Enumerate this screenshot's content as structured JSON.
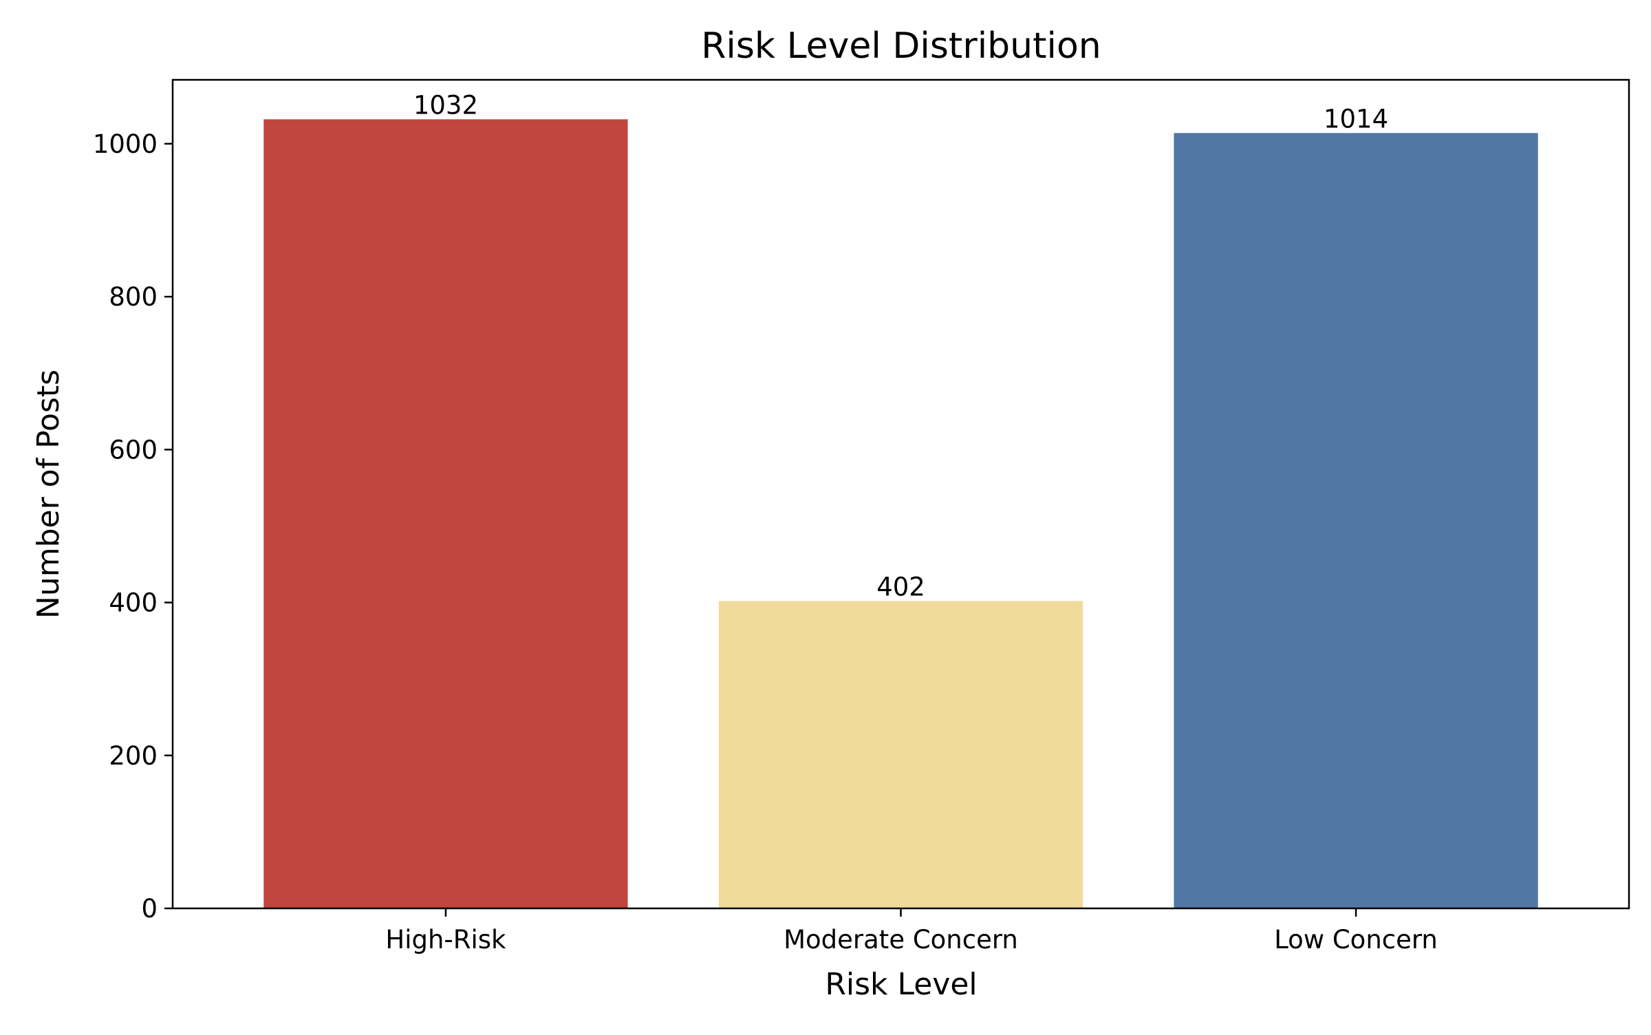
{
  "chart_data": {
    "type": "bar",
    "title": "Risk Level Distribution",
    "xlabel": "Risk Level",
    "ylabel": "Number of Posts",
    "categories": [
      "High-Risk",
      "Moderate Concern",
      "Low Concern"
    ],
    "values": [
      1032,
      402,
      1014
    ],
    "data_labels": [
      "1032",
      "402",
      "1014"
    ],
    "colors": [
      "#c0463e",
      "#f0da9c",
      "#5277a6"
    ],
    "ylim": [
      0,
      1083.6
    ],
    "yticks": [
      0,
      200,
      400,
      600,
      800,
      1000
    ],
    "ytick_labels": [
      "0",
      "200",
      "400",
      "600",
      "800",
      "1000"
    ],
    "grid": false,
    "legend": "none"
  }
}
